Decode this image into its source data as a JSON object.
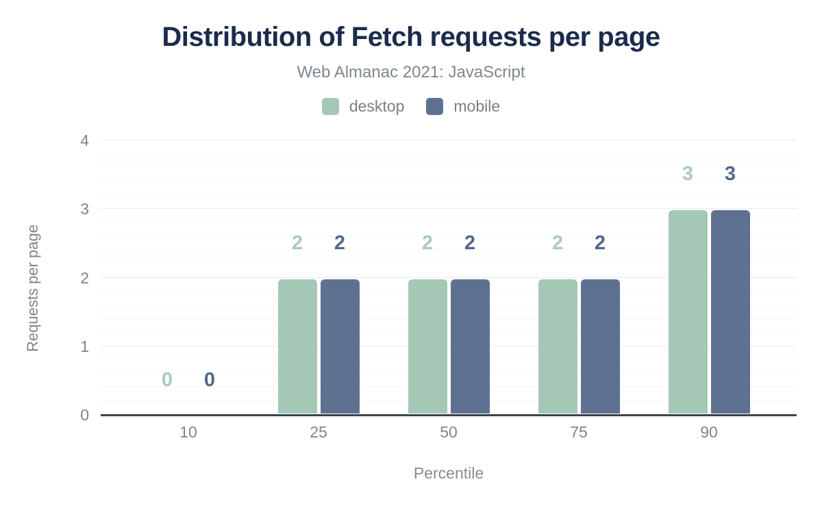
{
  "header": {
    "title": "Distribution of Fetch requests per page",
    "subtitle": "Web Almanac 2021: JavaScript"
  },
  "chart_data": {
    "type": "bar",
    "title": "Distribution of Fetch requests per page",
    "subtitle": "Web Almanac 2021: JavaScript",
    "categories": [
      "10",
      "25",
      "50",
      "75",
      "90"
    ],
    "series": [
      {
        "name": "desktop",
        "color": "#a5c8b6",
        "label_color": "#a9cbb9",
        "values": [
          0,
          2,
          2,
          2,
          3
        ]
      },
      {
        "name": "mobile",
        "color": "#5f7190",
        "label_color": "#53668a",
        "values": [
          0,
          2,
          2,
          2,
          3
        ]
      }
    ],
    "xlabel": "Percentile",
    "ylabel": "Requests per page",
    "ylim": [
      0,
      4
    ],
    "yticks": [
      0,
      1,
      2,
      3,
      4
    ],
    "grid": true,
    "minor_grid_step": 0.2,
    "legend_position": "top",
    "colors": {
      "title": "#1b2b4b",
      "subtitle": "#7e868e",
      "axis_line": "#3c434c",
      "grid_major": "#e9ebed",
      "grid_minor": "#f5f6f7",
      "tick_label": "#7d858d"
    }
  }
}
